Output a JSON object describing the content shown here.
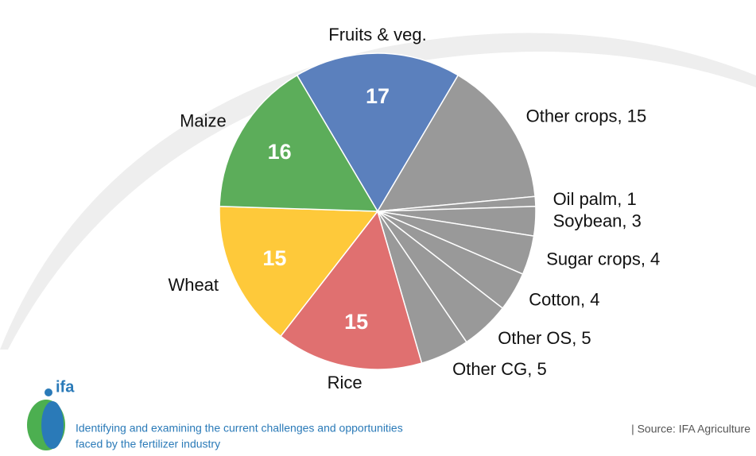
{
  "chart_data": {
    "type": "pie",
    "categories": [
      "Fruits & veg.",
      "Other crops, 15",
      "Oil palm, 1",
      "Soybean, 3",
      "Sugar crops, 4",
      "Cotton, 4",
      "Other OS, 5",
      "Other CG, 5",
      "Rice",
      "Wheat",
      "Maize"
    ],
    "values": [
      17,
      15,
      1,
      3,
      4,
      4,
      5,
      5,
      15,
      15,
      16
    ],
    "colors": [
      "#5b80bd",
      "#999999",
      "#999999",
      "#999999",
      "#999999",
      "#999999",
      "#999999",
      "#999999",
      "#e07070",
      "#fec93a",
      "#5cad5a"
    ],
    "value_inside": [
      true,
      false,
      false,
      false,
      false,
      false,
      false,
      false,
      true,
      true,
      true
    ]
  },
  "footer": {
    "logo": "ifa",
    "tagline_lines": [
      "Identifying and examining the current challenges and opportunities",
      "faced by the fertilizer industry"
    ],
    "source": "| Source: IFA Agriculture"
  }
}
